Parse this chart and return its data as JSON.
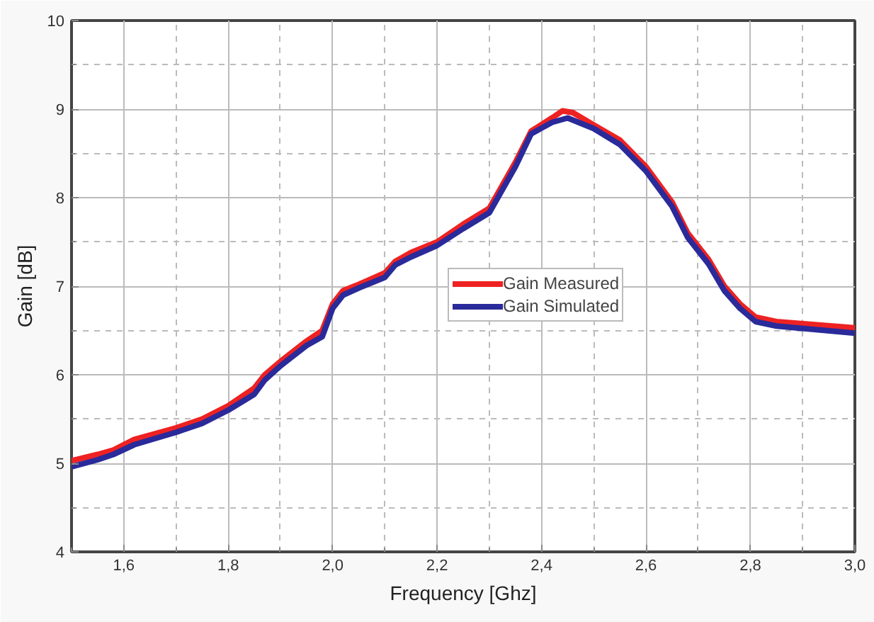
{
  "chart_data": {
    "type": "line",
    "xlabel": "Frequency [Ghz]",
    "ylabel": "Gain [dB]",
    "xlim": [
      1.5,
      3.0
    ],
    "ylim": [
      4,
      10
    ],
    "xticks": [
      {
        "value": 1.6,
        "label": "1,6"
      },
      {
        "value": 1.8,
        "label": "1,8"
      },
      {
        "value": 2.0,
        "label": "2,0"
      },
      {
        "value": 2.2,
        "label": "2,2"
      },
      {
        "value": 2.4,
        "label": "2,4"
      },
      {
        "value": 2.6,
        "label": "2,6"
      },
      {
        "value": 2.8,
        "label": "2,8"
      },
      {
        "value": 3.0,
        "label": "3,0"
      }
    ],
    "yticks": [
      4,
      5,
      6,
      7,
      8,
      9,
      10
    ],
    "grid": true,
    "legend": "center",
    "line_style": "solid",
    "marker": "none",
    "series": [
      {
        "name": "Gain Measured",
        "color": "#ee2222",
        "x": [
          1.5,
          1.55,
          1.58,
          1.62,
          1.7,
          1.75,
          1.8,
          1.85,
          1.87,
          1.9,
          1.95,
          1.98,
          2.0,
          2.02,
          2.05,
          2.1,
          2.12,
          2.15,
          2.2,
          2.25,
          2.3,
          2.35,
          2.38,
          2.42,
          2.44,
          2.46,
          2.5,
          2.55,
          2.6,
          2.65,
          2.68,
          2.72,
          2.75,
          2.78,
          2.81,
          2.85,
          3.0
        ],
        "values": [
          5.03,
          5.1,
          5.15,
          5.27,
          5.4,
          5.5,
          5.65,
          5.85,
          6.0,
          6.15,
          6.38,
          6.5,
          6.8,
          6.95,
          7.02,
          7.15,
          7.28,
          7.38,
          7.5,
          7.7,
          7.88,
          8.4,
          8.75,
          8.9,
          8.98,
          8.96,
          8.82,
          8.65,
          8.35,
          7.95,
          7.6,
          7.3,
          7.0,
          6.8,
          6.65,
          6.6,
          6.53
        ]
      },
      {
        "name": "Gain Simulated",
        "color": "#2a2a9a",
        "x": [
          1.5,
          1.55,
          1.58,
          1.62,
          1.7,
          1.75,
          1.8,
          1.85,
          1.87,
          1.9,
          1.95,
          1.98,
          2.0,
          2.02,
          2.05,
          2.1,
          2.12,
          2.15,
          2.2,
          2.25,
          2.3,
          2.35,
          2.38,
          2.42,
          2.45,
          2.5,
          2.55,
          2.6,
          2.65,
          2.68,
          2.72,
          2.75,
          2.78,
          2.81,
          2.85,
          3.0
        ],
        "values": [
          4.96,
          5.04,
          5.1,
          5.21,
          5.35,
          5.45,
          5.6,
          5.78,
          5.94,
          6.1,
          6.33,
          6.43,
          6.75,
          6.9,
          6.98,
          7.1,
          7.24,
          7.33,
          7.46,
          7.65,
          7.83,
          8.35,
          8.72,
          8.85,
          8.9,
          8.78,
          8.6,
          8.3,
          7.9,
          7.55,
          7.25,
          6.95,
          6.75,
          6.6,
          6.55,
          6.47
        ]
      }
    ]
  }
}
